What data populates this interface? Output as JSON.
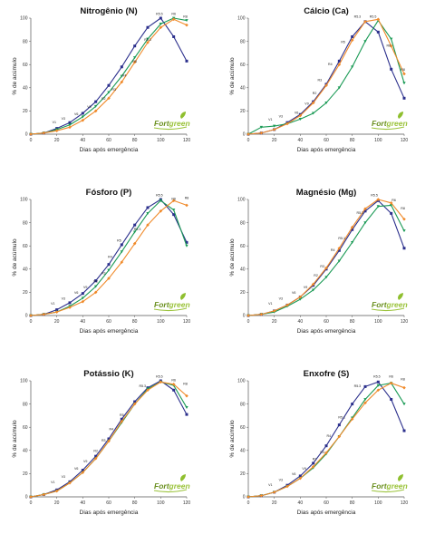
{
  "chart_data": [
    {
      "type": "line",
      "title": "Nitrogênio (N)",
      "xlabel": "Dias após emergência",
      "ylabel": "% de acúmulo",
      "xlim": [
        0,
        120
      ],
      "ylim": [
        0,
        100
      ],
      "xticks": [
        "0",
        "20",
        "40",
        "60",
        "80",
        "100",
        "120"
      ],
      "yticks": [
        "0",
        "20",
        "40",
        "60",
        "80",
        "100"
      ],
      "brand": [
        "Fort",
        "green"
      ],
      "series": [
        {
          "color": "#2b2f8c",
          "marker": "square",
          "x": [
            0,
            10,
            20,
            30,
            40,
            50,
            60,
            70,
            80,
            90,
            100,
            110,
            120
          ],
          "y": [
            0,
            1,
            5,
            10,
            18,
            28,
            42,
            58,
            76,
            92,
            100,
            84,
            63
          ]
        },
        {
          "color": "#1a9a55",
          "marker": "triangle",
          "x": [
            0,
            10,
            20,
            30,
            40,
            50,
            60,
            70,
            80,
            90,
            100,
            110,
            120
          ],
          "y": [
            0,
            1,
            4,
            8,
            15,
            24,
            36,
            50,
            66,
            82,
            95,
            100,
            98
          ]
        },
        {
          "color": "#f08a2a",
          "marker": "diamond",
          "x": [
            0,
            10,
            20,
            30,
            40,
            50,
            60,
            70,
            80,
            90,
            100,
            110,
            120
          ],
          "y": [
            0,
            1,
            3,
            6,
            12,
            20,
            31,
            45,
            62,
            79,
            92,
            99,
            94
          ]
        }
      ],
      "stages": [
        {
          "label": "V1",
          "x": 18,
          "y": 8
        },
        {
          "label": "V3",
          "x": 25,
          "y": 11
        },
        {
          "label": "V6",
          "x": 35,
          "y": 15
        },
        {
          "label": "V9",
          "x": 45,
          "y": 21
        },
        {
          "label": "R2",
          "x": 56,
          "y": 28
        },
        {
          "label": "R3",
          "x": 64,
          "y": 36
        },
        {
          "label": "R4",
          "x": 72,
          "y": 48
        },
        {
          "label": "R5",
          "x": 80,
          "y": 60
        },
        {
          "label": "R5.3",
          "x": 90,
          "y": 79
        },
        {
          "label": "R5.5",
          "x": 99,
          "y": 101
        },
        {
          "label": "R6",
          "x": 110,
          "y": 101
        },
        {
          "label": "R8",
          "x": 119,
          "y": 99
        }
      ]
    },
    {
      "type": "line",
      "title": "Cálcio (Ca)",
      "xlabel": "Dias após emergência",
      "ylabel": "% de acúmulo",
      "xlim": [
        0,
        120
      ],
      "ylim": [
        0,
        100
      ],
      "xticks": [
        "0",
        "20",
        "40",
        "60",
        "80",
        "100",
        "120"
      ],
      "yticks": [
        "0",
        "20",
        "40",
        "60",
        "80",
        "100"
      ],
      "brand": [
        "Fort",
        "green"
      ],
      "series": [
        {
          "color": "#2b2f8c",
          "marker": "square",
          "x": [
            0,
            10,
            20,
            30,
            40,
            50,
            60,
            70,
            80,
            90,
            100,
            110,
            120
          ],
          "y": [
            0,
            1,
            4,
            10,
            17,
            28,
            43,
            63,
            84,
            97,
            88,
            56,
            31
          ]
        },
        {
          "color": "#1a9a55",
          "marker": "triangle",
          "x": [
            0,
            10,
            20,
            30,
            40,
            50,
            60,
            70,
            80,
            90,
            100,
            110,
            120
          ],
          "y": [
            0,
            6,
            7,
            9,
            13,
            18,
            27,
            40,
            58,
            80,
            98,
            82,
            44
          ]
        },
        {
          "color": "#f08a2a",
          "marker": "diamond",
          "x": [
            0,
            10,
            20,
            30,
            40,
            50,
            60,
            70,
            80,
            90,
            100,
            110,
            120
          ],
          "y": [
            0,
            1,
            4,
            9,
            16,
            27,
            42,
            60,
            81,
            97,
            99,
            76,
            52
          ]
        }
      ],
      "stages": [
        {
          "label": "V1",
          "x": 17,
          "y": 10
        },
        {
          "label": "V3",
          "x": 25,
          "y": 13
        },
        {
          "label": "V6",
          "x": 37,
          "y": 16
        },
        {
          "label": "V9",
          "x": 45,
          "y": 24
        },
        {
          "label": "R2",
          "x": 51,
          "y": 33
        },
        {
          "label": "R3",
          "x": 55,
          "y": 44
        },
        {
          "label": "R4",
          "x": 63,
          "y": 58
        },
        {
          "label": "R5",
          "x": 73,
          "y": 77
        },
        {
          "label": "R5.3",
          "x": 84,
          "y": 99
        },
        {
          "label": "R5.5",
          "x": 96,
          "y": 99
        },
        {
          "label": "R6",
          "x": 108,
          "y": 74
        },
        {
          "label": "R8",
          "x": 119,
          "y": 53
        }
      ]
    },
    {
      "type": "line",
      "title": "Fósforo (P)",
      "xlabel": "Dias após emergência",
      "ylabel": "% de acúmulo",
      "xlim": [
        0,
        120
      ],
      "ylim": [
        0,
        100
      ],
      "xticks": [
        "0",
        "20",
        "40",
        "60",
        "80",
        "100",
        "120"
      ],
      "yticks": [
        "0",
        "20",
        "40",
        "60",
        "80",
        "100"
      ],
      "brand": [
        "Fort",
        "green"
      ],
      "series": [
        {
          "color": "#2b2f8c",
          "marker": "square",
          "x": [
            0,
            10,
            20,
            30,
            40,
            50,
            60,
            70,
            80,
            90,
            100,
            110,
            120
          ],
          "y": [
            0,
            1,
            5,
            11,
            19,
            30,
            44,
            61,
            78,
            93,
            100,
            87,
            63
          ]
        },
        {
          "color": "#1a9a55",
          "marker": "triangle",
          "x": [
            0,
            10,
            20,
            30,
            40,
            50,
            60,
            70,
            80,
            90,
            100,
            110,
            120
          ],
          "y": [
            0,
            1,
            3,
            8,
            15,
            25,
            39,
            55,
            72,
            88,
            99,
            91,
            60
          ]
        },
        {
          "color": "#f08a2a",
          "marker": "diamond",
          "x": [
            0,
            10,
            20,
            30,
            40,
            50,
            60,
            70,
            80,
            90,
            100,
            110,
            120
          ],
          "y": [
            0,
            1,
            3,
            7,
            12,
            20,
            32,
            46,
            62,
            78,
            90,
            99,
            95
          ]
        }
      ],
      "stages": [
        {
          "label": "V1",
          "x": 17,
          "y": 8
        },
        {
          "label": "V3",
          "x": 25,
          "y": 12
        },
        {
          "label": "V6",
          "x": 35,
          "y": 17
        },
        {
          "label": "V9",
          "x": 42,
          "y": 22
        },
        {
          "label": "R2",
          "x": 50,
          "y": 27
        },
        {
          "label": "R3",
          "x": 56,
          "y": 34
        },
        {
          "label": "R4",
          "x": 61,
          "y": 48
        },
        {
          "label": "R5",
          "x": 68,
          "y": 62
        },
        {
          "label": "R5.3",
          "x": 82,
          "y": 72
        },
        {
          "label": "R5.5",
          "x": 99,
          "y": 101
        },
        {
          "label": "R6",
          "x": 110,
          "y": 98
        },
        {
          "label": "R8",
          "x": 120,
          "y": 99
        }
      ]
    },
    {
      "type": "line",
      "title": "Magnésio (Mg)",
      "xlabel": "Dias após emergência",
      "ylabel": "% de acúmulo",
      "xlim": [
        0,
        120
      ],
      "ylim": [
        0,
        100
      ],
      "xticks": [
        "0",
        "20",
        "40",
        "60",
        "80",
        "100",
        "120"
      ],
      "yticks": [
        "0",
        "20",
        "40",
        "60",
        "80",
        "100"
      ],
      "brand": [
        "Fort",
        "green"
      ],
      "series": [
        {
          "color": "#2b2f8c",
          "marker": "square",
          "x": [
            0,
            10,
            20,
            30,
            40,
            50,
            60,
            70,
            80,
            90,
            100,
            110,
            120
          ],
          "y": [
            0,
            1,
            4,
            9,
            16,
            26,
            40,
            56,
            74,
            90,
            99,
            88,
            58
          ]
        },
        {
          "color": "#1a9a55",
          "marker": "triangle",
          "x": [
            0,
            10,
            20,
            30,
            40,
            50,
            60,
            70,
            80,
            90,
            100,
            110,
            120
          ],
          "y": [
            0,
            1,
            3,
            8,
            14,
            22,
            33,
            47,
            63,
            80,
            94,
            95,
            73
          ]
        },
        {
          "color": "#f08a2a",
          "marker": "diamond",
          "x": [
            0,
            10,
            20,
            30,
            40,
            50,
            60,
            70,
            80,
            90,
            100,
            110,
            120
          ],
          "y": [
            0,
            1,
            4,
            9,
            16,
            27,
            41,
            58,
            76,
            92,
            100,
            97,
            83
          ]
        }
      ],
      "stages": [
        {
          "label": "V1",
          "x": 17,
          "y": 8
        },
        {
          "label": "V3",
          "x": 25,
          "y": 12
        },
        {
          "label": "V6",
          "x": 35,
          "y": 17
        },
        {
          "label": "V9",
          "x": 44,
          "y": 22
        },
        {
          "label": "R2",
          "x": 52,
          "y": 32
        },
        {
          "label": "R3",
          "x": 57,
          "y": 40
        },
        {
          "label": "R4",
          "x": 65,
          "y": 54
        },
        {
          "label": "R5.1",
          "x": 72,
          "y": 64
        },
        {
          "label": "R5.3",
          "x": 86,
          "y": 86
        },
        {
          "label": "R5.5",
          "x": 97,
          "y": 101
        },
        {
          "label": "R6",
          "x": 112,
          "y": 97
        },
        {
          "label": "R8",
          "x": 119,
          "y": 90
        }
      ]
    },
    {
      "type": "line",
      "title": "Potássio (K)",
      "xlabel": "Dias após emergência",
      "ylabel": "% de acúmulo",
      "xlim": [
        0,
        120
      ],
      "ylim": [
        0,
        100
      ],
      "xticks": [
        "0",
        "20",
        "40",
        "60",
        "80",
        "100",
        "120"
      ],
      "yticks": [
        "0",
        "20",
        "40",
        "60",
        "80",
        "100"
      ],
      "brand": [
        "Fort",
        "green"
      ],
      "series": [
        {
          "color": "#2b2f8c",
          "marker": "square",
          "x": [
            0,
            10,
            20,
            30,
            40,
            50,
            60,
            70,
            80,
            90,
            100,
            110,
            120
          ],
          "y": [
            0,
            2,
            6,
            13,
            23,
            35,
            50,
            67,
            82,
            94,
            100,
            92,
            71
          ]
        },
        {
          "color": "#1a9a55",
          "marker": "triangle",
          "x": [
            0,
            10,
            20,
            30,
            40,
            50,
            60,
            70,
            80,
            90,
            100,
            110,
            120
          ],
          "y": [
            0,
            2,
            5,
            12,
            21,
            33,
            48,
            64,
            80,
            93,
            99,
            96,
            77
          ]
        },
        {
          "color": "#f08a2a",
          "marker": "diamond",
          "x": [
            0,
            10,
            20,
            30,
            40,
            50,
            60,
            70,
            80,
            90,
            100,
            110,
            120
          ],
          "y": [
            0,
            2,
            5,
            12,
            21,
            33,
            48,
            65,
            80,
            92,
            99,
            97,
            87
          ]
        }
      ],
      "stages": [
        {
          "label": "V1",
          "x": 17,
          "y": 10
        },
        {
          "label": "V3",
          "x": 25,
          "y": 15
        },
        {
          "label": "V6",
          "x": 35,
          "y": 22
        },
        {
          "label": "V9",
          "x": 42,
          "y": 28
        },
        {
          "label": "R2",
          "x": 50,
          "y": 37
        },
        {
          "label": "R3",
          "x": 56,
          "y": 46
        },
        {
          "label": "R4",
          "x": 62,
          "y": 56
        },
        {
          "label": "R5",
          "x": 70,
          "y": 68
        },
        {
          "label": "R5.3",
          "x": 86,
          "y": 93
        },
        {
          "label": "R5.5",
          "x": 99,
          "y": 101
        },
        {
          "label": "R6",
          "x": 110,
          "y": 98
        },
        {
          "label": "R8",
          "x": 119,
          "y": 95
        }
      ]
    },
    {
      "type": "line",
      "title": "Enxofre (S)",
      "xlabel": "Dias após emergência",
      "ylabel": "% de acúmulo",
      "xlim": [
        0,
        120
      ],
      "ylim": [
        0,
        100
      ],
      "xticks": [
        "0",
        "20",
        "40",
        "60",
        "80",
        "100",
        "120"
      ],
      "yticks": [
        "0",
        "20",
        "40",
        "60",
        "80",
        "100"
      ],
      "brand": [
        "Fort",
        "green"
      ],
      "series": [
        {
          "color": "#2b2f8c",
          "marker": "square",
          "x": [
            0,
            10,
            20,
            30,
            40,
            50,
            60,
            70,
            80,
            90,
            100,
            110,
            120
          ],
          "y": [
            0,
            1,
            4,
            10,
            18,
            29,
            44,
            62,
            80,
            95,
            99,
            84,
            57
          ]
        },
        {
          "color": "#1a9a55",
          "marker": "triangle",
          "x": [
            0,
            10,
            20,
            30,
            40,
            50,
            60,
            70,
            80,
            90,
            100,
            110,
            120
          ],
          "y": [
            0,
            1,
            4,
            9,
            16,
            25,
            37,
            52,
            68,
            84,
            96,
            98,
            80
          ]
        },
        {
          "color": "#f08a2a",
          "marker": "diamond",
          "x": [
            0,
            10,
            20,
            30,
            40,
            50,
            60,
            70,
            80,
            90,
            100,
            110,
            120
          ],
          "y": [
            0,
            1,
            4,
            9,
            16,
            26,
            38,
            52,
            67,
            81,
            92,
            98,
            94
          ]
        }
      ],
      "stages": [
        {
          "label": "V1",
          "x": 17,
          "y": 8
        },
        {
          "label": "V3",
          "x": 25,
          "y": 12
        },
        {
          "label": "V6",
          "x": 35,
          "y": 17
        },
        {
          "label": "V9",
          "x": 43,
          "y": 22
        },
        {
          "label": "R2",
          "x": 51,
          "y": 30
        },
        {
          "label": "R3",
          "x": 57,
          "y": 36
        },
        {
          "label": "R4",
          "x": 62,
          "y": 50
        },
        {
          "label": "R5.1",
          "x": 72,
          "y": 66
        },
        {
          "label": "R5.3",
          "x": 84,
          "y": 93
        },
        {
          "label": "R5.5",
          "x": 99,
          "y": 101
        },
        {
          "label": "R6",
          "x": 110,
          "y": 101
        },
        {
          "label": "R8",
          "x": 119,
          "y": 99
        }
      ]
    }
  ]
}
